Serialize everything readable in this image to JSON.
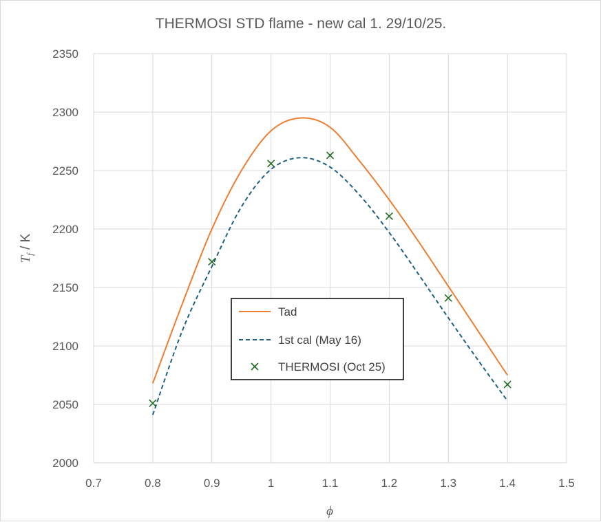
{
  "chart_data": {
    "type": "line",
    "title": "THERMOSI STD flame - new cal 1. 29/10/25.",
    "xlabel": "ϕ",
    "ylabel_main": "T",
    "ylabel_sub": "f",
    "ylabel_unit": " / K",
    "xlim": [
      0.7,
      1.5
    ],
    "ylim": [
      2000,
      2350
    ],
    "xticks": [
      0.7,
      0.8,
      0.9,
      1,
      1.1,
      1.2,
      1.3,
      1.4,
      1.5
    ],
    "yticks": [
      2000,
      2050,
      2100,
      2150,
      2200,
      2250,
      2300,
      2350
    ],
    "grid": true,
    "legend_position": "center-left",
    "series": [
      {
        "name": "Tad",
        "style": "solid",
        "color": "#ed7d31",
        "x": [
          0.8,
          0.85,
          0.9,
          0.95,
          1.0,
          1.05,
          1.1,
          1.15,
          1.2,
          1.25,
          1.3,
          1.35,
          1.4
        ],
        "y": [
          2068,
          2136,
          2200,
          2250,
          2284,
          2295,
          2287,
          2258,
          2225,
          2189,
          2151,
          2113,
          2075
        ]
      },
      {
        "name": "1st cal (May 16)",
        "style": "dashed",
        "color": "#1f6080",
        "x": [
          0.8,
          0.85,
          0.9,
          0.95,
          1.0,
          1.05,
          1.1,
          1.15,
          1.2,
          1.25,
          1.3,
          1.35,
          1.4
        ],
        "y": [
          2041,
          2113,
          2168,
          2219,
          2251,
          2261,
          2253,
          2229,
          2197,
          2161,
          2124,
          2088,
          2053
        ]
      },
      {
        "name": "THERMOSI (Oct 25)",
        "style": "markers",
        "color": "#1e6b1e",
        "x": [
          0.8,
          0.9,
          1.0,
          1.1,
          1.2,
          1.3,
          1.4
        ],
        "y": [
          2051,
          2172,
          2256,
          2263,
          2211,
          2141,
          2067
        ]
      }
    ]
  }
}
